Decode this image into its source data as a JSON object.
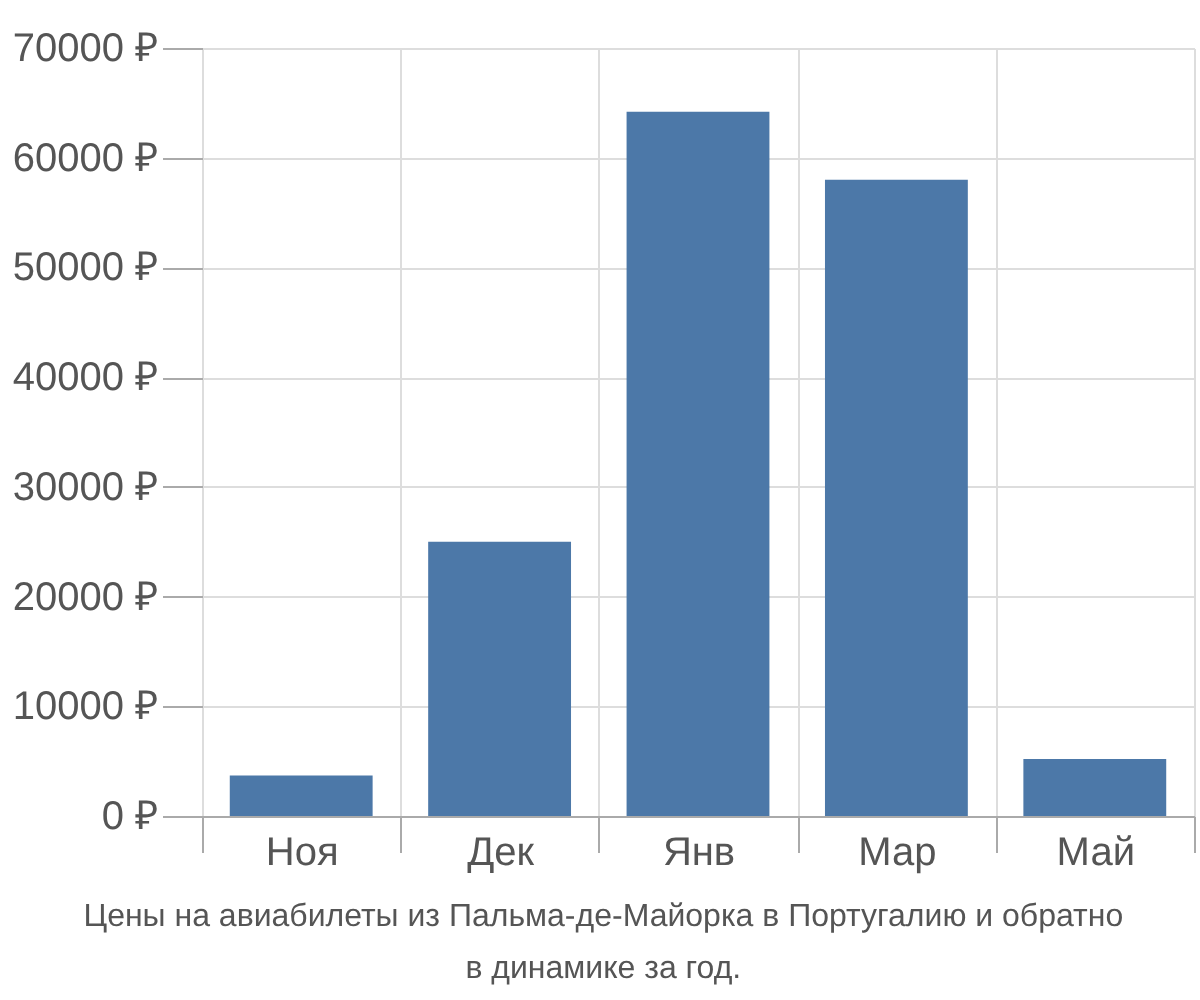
{
  "chart_data": {
    "type": "bar",
    "categories": [
      "Ноя",
      "Дек",
      "Янв",
      "Мар",
      "Май"
    ],
    "values": [
      3700,
      25000,
      64200,
      58000,
      5200
    ],
    "color": "#4c78a8",
    "ylim": [
      0,
      70000
    ],
    "yticks": [
      {
        "value": 0,
        "label": "0 ₽"
      },
      {
        "value": 10000,
        "label": "10000 ₽"
      },
      {
        "value": 20000,
        "label": "20000 ₽"
      },
      {
        "value": 30000,
        "label": "30000 ₽"
      },
      {
        "value": 40000,
        "label": "40000 ₽"
      },
      {
        "value": 50000,
        "label": "50000 ₽"
      },
      {
        "value": 60000,
        "label": "60000 ₽"
      },
      {
        "value": 70000,
        "label": "70000 ₽"
      }
    ],
    "grid": true,
    "annotations": [
      "Цены на авиабилеты из Пальма-де-Майорка в Португалию и обратно",
      "в динамике за год."
    ]
  }
}
